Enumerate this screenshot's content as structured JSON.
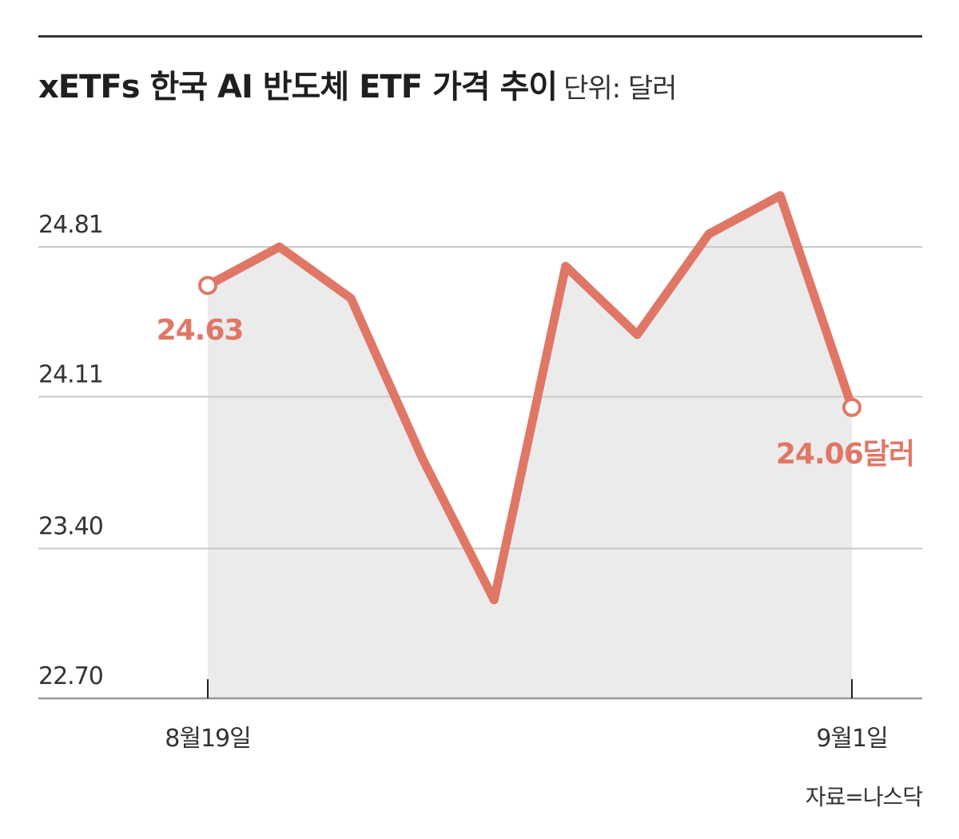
{
  "header": {
    "title": "xETFs 한국 AI 반도체 ETF 가격 추이",
    "unit": "단위: 달러"
  },
  "source": "자료=나스닥",
  "colors": {
    "line": "#e07766",
    "area": "#ebebeb",
    "grid": "#c8c8c8",
    "axis": "#999999",
    "text": "#333333"
  },
  "chart_data": {
    "type": "line",
    "y_ticks": [
      "24.81",
      "24.11",
      "23.40",
      "22.70"
    ],
    "ylim": [
      22.7,
      24.81
    ],
    "x_tick_labels": [
      "8월19일",
      "9월1일"
    ],
    "values": [
      24.63,
      24.81,
      24.57,
      23.82,
      23.16,
      24.72,
      24.4,
      24.87,
      25.05,
      24.06
    ],
    "annotations": {
      "start": "24.63",
      "end": "24.06달러"
    },
    "grid": true,
    "area_fill": true
  }
}
